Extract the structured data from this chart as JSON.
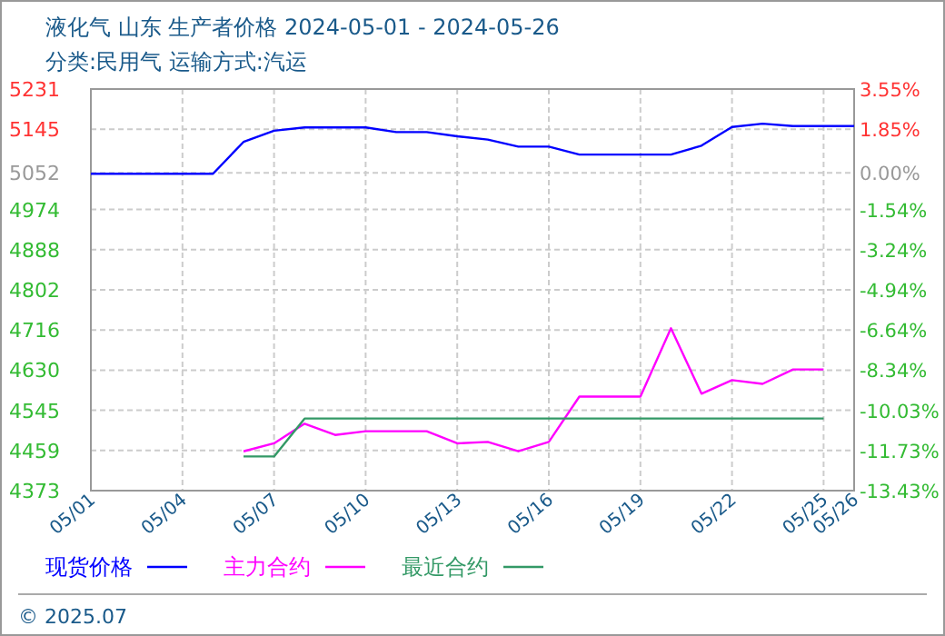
{
  "chart_data": {
    "type": "line",
    "title": "液化气 山东 生产者价格 2024-05-01 - 2024-05-26",
    "subtitle": "分类:民用气 运输方式:汽运",
    "annotations": [
      "© 2025.07"
    ],
    "xlim": [
      "2024-05-01",
      "2024-05-26"
    ],
    "xticks": [
      {
        "value": "2024-05-01",
        "label": "05/01"
      },
      {
        "value": "2024-05-04",
        "label": "05/04"
      },
      {
        "value": "2024-05-07",
        "label": "05/07"
      },
      {
        "value": "2024-05-10",
        "label": "05/10"
      },
      {
        "value": "2024-05-13",
        "label": "05/13"
      },
      {
        "value": "2024-05-16",
        "label": "05/16"
      },
      {
        "value": "2024-05-19",
        "label": "05/19"
      },
      {
        "value": "2024-05-22",
        "label": "05/22"
      },
      {
        "value": "2024-05-25",
        "label": "05/25"
      },
      {
        "value": "2024-05-26",
        "label": "05/26"
      }
    ],
    "ylim": [
      4373,
      5231
    ],
    "yticks": [
      {
        "value": 4373,
        "label": "4373"
      },
      {
        "value": 4458.8,
        "label": "4459"
      },
      {
        "value": 4544.6,
        "label": "4545"
      },
      {
        "value": 4630.4,
        "label": "4630"
      },
      {
        "value": 4716.2,
        "label": "4716"
      },
      {
        "value": 4802,
        "label": "4802"
      },
      {
        "value": 4887.8,
        "label": "4888"
      },
      {
        "value": 4973.6,
        "label": "4974"
      },
      5052,
      {
        "value": 5145.2,
        "label": "5145"
      },
      {
        "value": 5231,
        "label": "5231"
      }
    ],
    "y2lim": [
      -13.43,
      3.55
    ],
    "y2ticks": [
      {
        "value": -13.43,
        "label": "-13.43%"
      },
      {
        "value": -11.732,
        "label": "-11.73%"
      },
      {
        "value": -10.034,
        "label": "-10.03%"
      },
      {
        "value": -8.336,
        "label": "-8.34%"
      },
      {
        "value": -6.638,
        "label": "-6.64%"
      },
      {
        "value": -4.94,
        "label": "-4.94%"
      },
      {
        "value": -3.242,
        "label": "-3.24%"
      },
      {
        "value": -1.544,
        "label": "-1.54%"
      },
      {
        "value": 0,
        "label": "0.00%"
      },
      {
        "value": 1.852,
        "label": "1.85%"
      },
      {
        "value": 3.55,
        "label": "3.55%"
      }
    ],
    "grid": true,
    "legend": "bottom",
    "marker": "none",
    "line_style": "solid",
    "series": [
      {
        "name": "现货价格",
        "color": "#0000ff",
        "x": [
          "2024-05-01",
          "2024-05-02",
          "2024-05-03",
          "2024-05-04",
          "2024-05-05",
          "2024-05-06",
          "2024-05-07",
          "2024-05-08",
          "2024-05-09",
          "2024-05-10",
          "2024-05-11",
          "2024-05-12",
          "2024-05-13",
          "2024-05-14",
          "2024-05-15",
          "2024-05-16",
          "2024-05-17",
          "2024-05-18",
          "2024-05-19",
          "2024-05-20",
          "2024-05-21",
          "2024-05-22",
          "2024-05-23",
          "2024-05-24",
          "2024-05-25",
          "2024-05-26"
        ],
        "values": [
          5050,
          5050,
          5050,
          5050,
          5050,
          5118,
          5142,
          5149,
          5149,
          5149,
          5139,
          5139,
          5130,
          5123,
          5108,
          5108,
          5091,
          5091,
          5091,
          5091,
          5110,
          5150,
          5157,
          5152,
          5152,
          5152
        ]
      },
      {
        "name": "主力合约",
        "color": "#ff00ff",
        "x": [
          "2024-05-06",
          "2024-05-07",
          "2024-05-08",
          "2024-05-09",
          "2024-05-10",
          "2024-05-11",
          "2024-05-12",
          "2024-05-13",
          "2024-05-14",
          "2024-05-15",
          "2024-05-16",
          "2024-05-17",
          "2024-05-18",
          "2024-05-19",
          "2024-05-20",
          "2024-05-21",
          "2024-05-22",
          "2024-05-23",
          "2024-05-24",
          "2024-05-25"
        ],
        "values": [
          4457,
          4474,
          4516,
          4492,
          4500,
          4500,
          4500,
          4474,
          4477,
          4457,
          4477,
          4574,
          4574,
          4574,
          4720,
          4580,
          4609,
          4601,
          4632,
          4632
        ]
      },
      {
        "name": "最近合约",
        "color": "#339966",
        "x": [
          "2024-05-06",
          "2024-05-07",
          "2024-05-08",
          "2024-05-09",
          "2024-05-10",
          "2024-05-11",
          "2024-05-12",
          "2024-05-13",
          "2024-05-14",
          "2024-05-15",
          "2024-05-16",
          "2024-05-17",
          "2024-05-18",
          "2024-05-19",
          "2024-05-20",
          "2024-05-21",
          "2024-05-22",
          "2024-05-23",
          "2024-05-24",
          "2024-05-25"
        ],
        "values": [
          4446,
          4446,
          4527,
          4527,
          4527,
          4527,
          4527,
          4527,
          4527,
          4527,
          4527,
          4527,
          4527,
          4527,
          4527,
          4527,
          4527,
          4527,
          4527,
          4527
        ]
      }
    ]
  }
}
